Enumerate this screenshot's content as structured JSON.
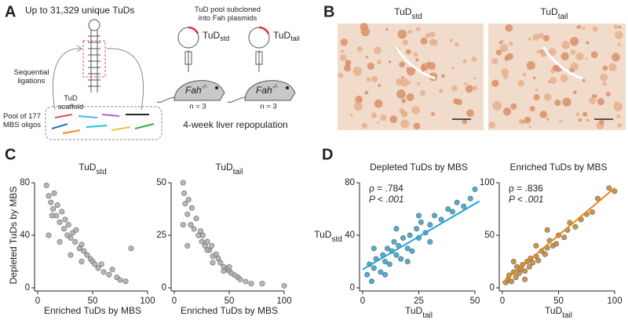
{
  "panel_a": {
    "label": "A",
    "heading": "Up to 31,329 unique TuDs",
    "ligations": [
      "Sequential",
      "ligations"
    ],
    "scaffold": [
      "TuD",
      "scaffold"
    ],
    "pool": [
      "Pool of 177",
      "MBS oligos"
    ],
    "subcloned": [
      "TuD pool subcloned",
      "into Fah plasmids"
    ],
    "plasmid_std": {
      "main": "TuD",
      "sub": "std"
    },
    "plasmid_tail": {
      "main": "TuD",
      "sub": "tail"
    },
    "mouse": {
      "main": "Fah",
      "sup": "-/-"
    },
    "n_std": "n = 3",
    "n_tail": "n = 3",
    "caption": "4-week liver repopulation"
  },
  "panel_b": {
    "label": "B",
    "title_std": {
      "main": "TuD",
      "sub": "std"
    },
    "title_tail": {
      "main": "TuD",
      "sub": "tail"
    }
  },
  "panel_labels": {
    "c": "C",
    "d": "D"
  },
  "chart_data": [
    {
      "type": "scatter",
      "title": "TuD",
      "title_sub": "std",
      "xlabel": "Enriched TuDs by MBS",
      "ylabel": "Depleted TuDs by MBS",
      "color": "#b0b0b0",
      "x": [
        8,
        10,
        12,
        14,
        15,
        17,
        18,
        20,
        22,
        24,
        25,
        27,
        28,
        30,
        32,
        34,
        35,
        38,
        40,
        42,
        45,
        48,
        50,
        52,
        55,
        58,
        60,
        65,
        68,
        72,
        75,
        80,
        85,
        10,
        13,
        20,
        30,
        40
      ],
      "y": [
        78,
        70,
        65,
        60,
        72,
        55,
        63,
        50,
        58,
        45,
        52,
        40,
        48,
        38,
        42,
        35,
        44,
        30,
        33,
        28,
        25,
        22,
        20,
        18,
        15,
        18,
        12,
        10,
        14,
        8,
        6,
        5,
        30,
        40,
        55,
        35,
        25,
        20
      ],
      "xlim": [
        0,
        100
      ],
      "xticks": [
        0,
        50,
        100
      ],
      "ylim": [
        0,
        80
      ],
      "yticks": [
        0,
        40,
        80
      ]
    },
    {
      "type": "scatter",
      "title": "TuD",
      "title_sub": "tail",
      "xlabel": "Enriched TuDs by MBS",
      "color": "#b0b0b0",
      "x": [
        8,
        9,
        10,
        12,
        13,
        15,
        16,
        18,
        20,
        22,
        24,
        25,
        26,
        28,
        30,
        32,
        34,
        35,
        38,
        40,
        42,
        45,
        48,
        50,
        52,
        55,
        58,
        60,
        65,
        70,
        80,
        100,
        50,
        12,
        8,
        30,
        35,
        45
      ],
      "y": [
        50,
        45,
        40,
        35,
        42,
        30,
        38,
        28,
        33,
        25,
        27,
        22,
        25,
        20,
        22,
        18,
        20,
        15,
        16,
        14,
        12,
        10,
        9,
        8,
        7,
        6,
        5,
        4,
        3,
        2,
        2,
        1,
        10,
        20,
        30,
        18,
        12,
        8
      ],
      "xlim": [
        0,
        100
      ],
      "xticks": [
        0,
        50,
        100
      ],
      "ylim": [
        0,
        50
      ],
      "yticks": [
        0,
        25,
        50
      ]
    },
    {
      "type": "scatter",
      "title": "Depleted TuDs by MBS",
      "xlabel": "TuD",
      "xlabel_sub": "tail",
      "ylabel": "TuD",
      "ylabel_sub": "std",
      "color": "#3aa8cc",
      "annotations": [
        "ρ = .784",
        "P < .001"
      ],
      "x": [
        2,
        3,
        4,
        5,
        6,
        8,
        9,
        10,
        11,
        12,
        13,
        14,
        15,
        16,
        17,
        18,
        20,
        21,
        22,
        24,
        25,
        26,
        28,
        30,
        32,
        35,
        38,
        40,
        42,
        45,
        48,
        50,
        5,
        10,
        15,
        20,
        25,
        30
      ],
      "y": [
        10,
        18,
        5,
        15,
        22,
        12,
        25,
        20,
        30,
        18,
        28,
        35,
        25,
        32,
        22,
        38,
        30,
        40,
        28,
        45,
        38,
        50,
        42,
        48,
        55,
        52,
        60,
        58,
        65,
        62,
        68,
        75,
        30,
        10,
        45,
        20,
        55,
        35
      ],
      "fit": {
        "x": [
          0,
          52
        ],
        "y": [
          14,
          66
        ],
        "color": "#1fa3dc"
      },
      "xlim": [
        0,
        50
      ],
      "xticks": [
        0,
        25,
        50
      ],
      "ylim": [
        0,
        80
      ],
      "yticks": [
        0,
        40,
        80
      ]
    },
    {
      "type": "scatter",
      "title": "Enriched TuDs by MBS",
      "xlabel": "TuD",
      "xlabel_sub": "tail",
      "color": "#c58a35",
      "annotations": [
        "ρ = .836",
        "P < .001"
      ],
      "x": [
        3,
        5,
        6,
        8,
        10,
        12,
        13,
        15,
        16,
        18,
        20,
        22,
        24,
        25,
        27,
        30,
        32,
        35,
        38,
        40,
        42,
        45,
        48,
        50,
        55,
        58,
        60,
        65,
        70,
        75,
        80,
        85,
        95,
        10,
        20,
        30,
        40,
        100
      ],
      "y": [
        5,
        8,
        12,
        6,
        15,
        10,
        20,
        14,
        18,
        22,
        16,
        25,
        20,
        28,
        24,
        30,
        26,
        35,
        32,
        38,
        45,
        40,
        42,
        50,
        48,
        55,
        62,
        58,
        65,
        70,
        72,
        85,
        95,
        25,
        8,
        40,
        55,
        92
      ],
      "fit": {
        "x": [
          0,
          100
        ],
        "y": [
          5,
          95
        ],
        "color": "#e28a1e"
      },
      "xlim": [
        0,
        100
      ],
      "xticks": [
        0,
        50,
        100
      ],
      "ylim": [
        0,
        100
      ],
      "yticks": [
        0,
        50,
        100
      ]
    }
  ]
}
